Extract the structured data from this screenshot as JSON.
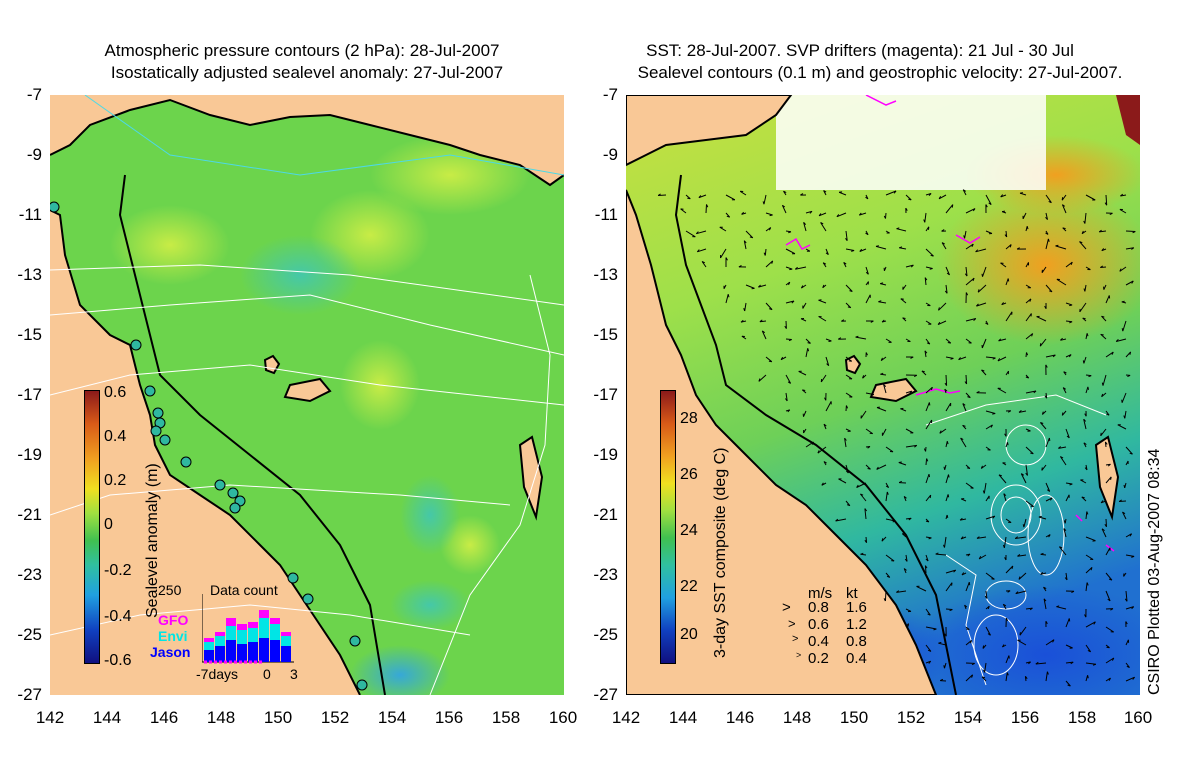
{
  "left_panel": {
    "title_line1": "Atmospheric pressure contours (2 hPa): 28-Jul-2007",
    "title_line2": "Isostatically adjusted sealevel anomaly: 27-Jul-2007",
    "colorbar_label": "Sealevel anomaly (m)",
    "colorbar_ticks": [
      "0.6",
      "0.4",
      "0.2",
      "0",
      "-0.2",
      "-0.4",
      "-0.6"
    ],
    "inset": {
      "title": "Data count",
      "ymax_label": "250",
      "series": [
        "GFO",
        "Envi",
        "Jason"
      ],
      "xaxis_labels": [
        "-7days",
        "0",
        "3"
      ],
      "colors": {
        "GFO": "#ff00ff",
        "Envi": "#00e5e5",
        "Jason": "#0000ff"
      }
    }
  },
  "right_panel": {
    "title_line1": "SST: 28-Jul-2007. SVP drifters (magenta): 21 Jul - 30 Jul",
    "title_line2": "Sealevel contours (0.1 m) and geostrophic velocity: 27-Jul-2007.",
    "colorbar_label": "3-day SST composite (deg C)",
    "colorbar_ticks": [
      "28",
      "26",
      "24",
      "22",
      "20"
    ],
    "velocity_legend": {
      "header_ms": "m/s",
      "header_kt": "kt",
      "rows": [
        {
          "ms": "0.8",
          "kt": "1.6"
        },
        {
          "ms": "0.6",
          "kt": "1.2"
        },
        {
          "ms": "0.4",
          "kt": "0.8"
        },
        {
          "ms": "0.2",
          "kt": "0.4"
        }
      ]
    },
    "credit": "CSIRO Plotted 03-Aug-2007 08:34"
  },
  "axes": {
    "lat_labels": [
      "-7",
      "-9",
      "-11",
      "-13",
      "-15",
      "-17",
      "-19",
      "-21",
      "-23",
      "-25",
      "-27"
    ],
    "lon_labels": [
      "142",
      "144",
      "146",
      "148",
      "150",
      "152",
      "154",
      "156",
      "158",
      "160"
    ]
  },
  "colors": {
    "land": "#f9c896",
    "ocean_green": "#6fd24a",
    "ocean_light": "#b9e84a",
    "coast": "#000000",
    "contour": "#ffffff",
    "drifter": "#ff00ff"
  }
}
